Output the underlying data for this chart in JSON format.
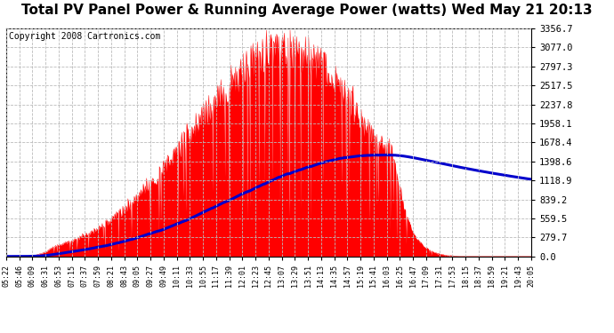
{
  "title": "Total PV Panel Power & Running Average Power (watts) Wed May 21 20:13",
  "copyright": "Copyright 2008 Cartronics.com",
  "yticks": [
    0.0,
    279.7,
    559.5,
    839.2,
    1118.9,
    1398.6,
    1678.4,
    1958.1,
    2237.8,
    2517.5,
    2797.3,
    3077.0,
    3356.7
  ],
  "ymax": 3356.7,
  "ymin": 0.0,
  "xtick_labels": [
    "05:22",
    "05:46",
    "06:09",
    "06:31",
    "06:53",
    "07:15",
    "07:37",
    "07:59",
    "08:21",
    "08:43",
    "09:05",
    "09:27",
    "09:49",
    "10:11",
    "10:33",
    "10:55",
    "11:17",
    "11:39",
    "12:01",
    "12:23",
    "12:45",
    "13:07",
    "13:29",
    "13:51",
    "14:13",
    "14:35",
    "14:57",
    "15:19",
    "15:41",
    "16:03",
    "16:25",
    "16:47",
    "17:09",
    "17:31",
    "17:53",
    "18:15",
    "18:37",
    "18:59",
    "19:21",
    "19:43",
    "20:05"
  ],
  "bg_color": "#ffffff",
  "plot_bg_color": "#ffffff",
  "grid_color": "#bbbbbb",
  "fill_color": "#ff0000",
  "line_color": "#0000cc",
  "title_fontsize": 11,
  "copyright_fontsize": 7
}
